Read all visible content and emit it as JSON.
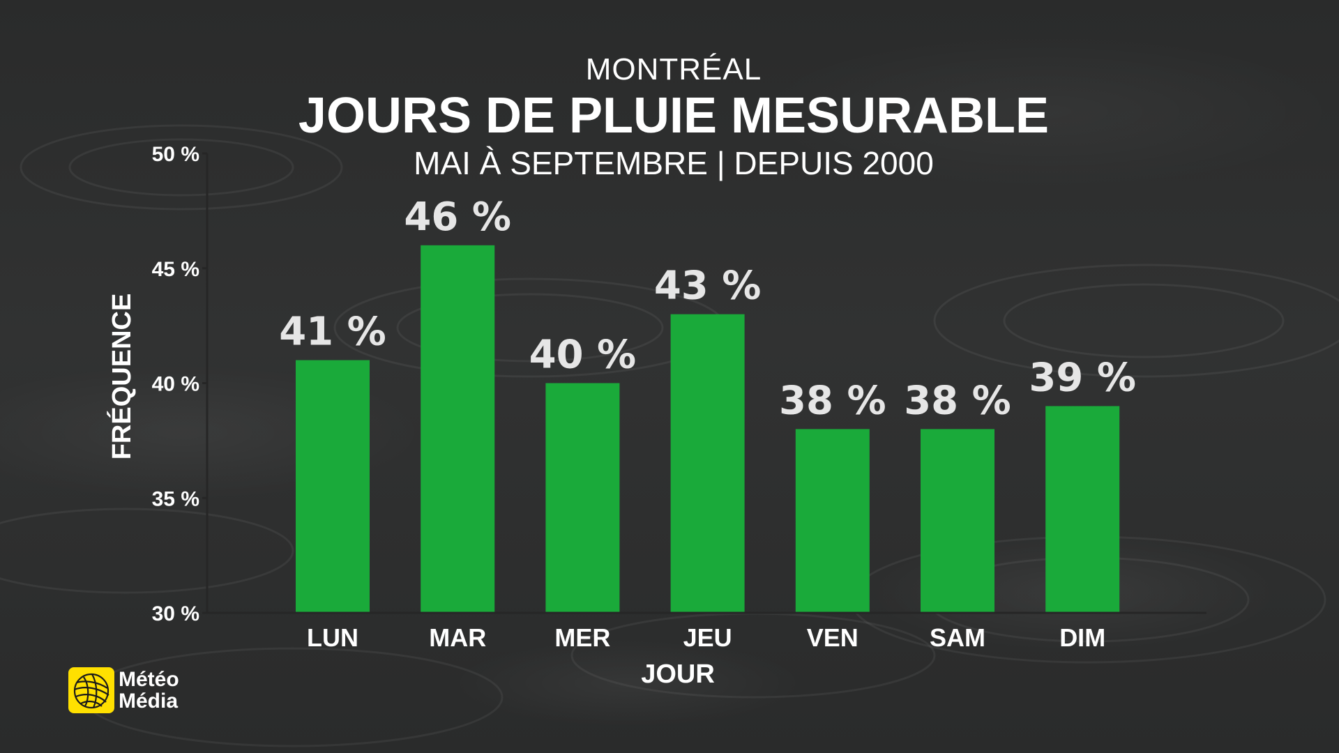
{
  "header": {
    "city": "MONTRÉAL",
    "title": "JOURS DE PLUIE MESURABLE",
    "subtitle": "MAI À SEPTEMBRE | DEPUIS 2000"
  },
  "chart_data": {
    "type": "bar",
    "title": "JOURS DE PLUIE MESURABLE",
    "xlabel": "JOUR",
    "ylabel": "FRÉQUENCE",
    "categories": [
      "LUN",
      "MAR",
      "MER",
      "JEU",
      "VEN",
      "SAM",
      "DIM"
    ],
    "values": [
      41,
      46,
      40,
      43,
      38,
      38,
      39
    ],
    "value_labels": [
      "41 %",
      "46 %",
      "40 %",
      "43 %",
      "38 %",
      "38 %",
      "39 %"
    ],
    "ylim": [
      30,
      50
    ],
    "yticks": [
      30,
      35,
      40,
      45,
      50
    ],
    "ytick_labels": [
      "30 %",
      "35 %",
      "40 %",
      "45 %",
      "50 %"
    ],
    "grid": false,
    "legend": "none",
    "bar_color": "#1aaa3a",
    "axis_color": "#2a2a2a"
  },
  "logo": {
    "line1": "Météo",
    "line2": "Média",
    "mark_color": "#ffe000"
  }
}
